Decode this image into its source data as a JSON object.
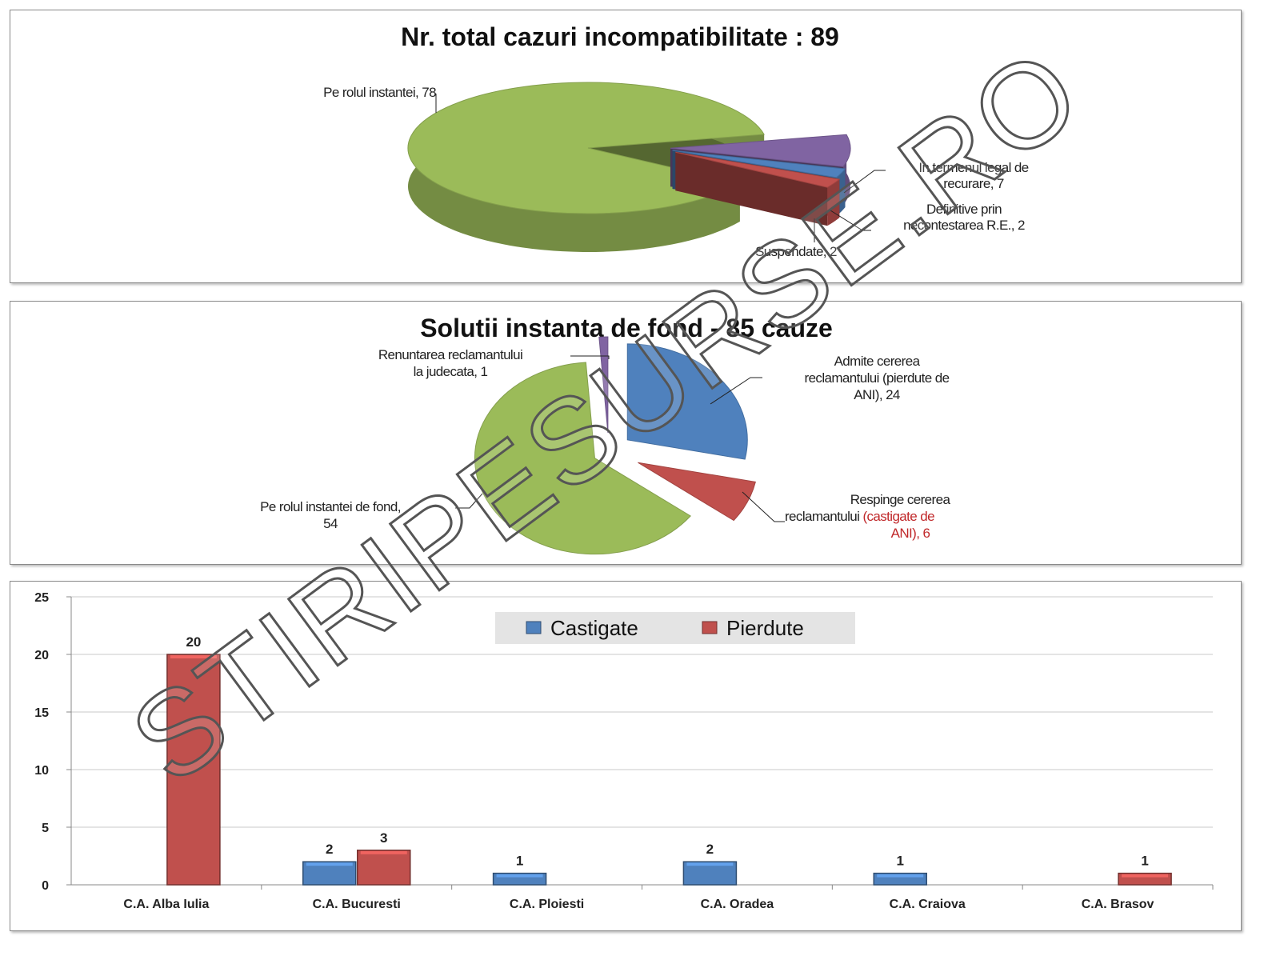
{
  "chart_data": [
    {
      "type": "pie",
      "title": "Nr. total cazuri incompatibilitate : 89",
      "slices": [
        {
          "label": "Pe rolul instantei",
          "value": 78,
          "color": "#9bbb59",
          "label_text": "Pe rolul instantei, 78"
        },
        {
          "label": "In termenul legal de recurare",
          "value": 7,
          "color": "#8064a2",
          "label_text": [
            "In termenul legal de",
            "recurare, 7"
          ]
        },
        {
          "label": "Definitive prin necontestarea R.E.",
          "value": 2,
          "color": "#4f81bd",
          "label_text": [
            "Definitive prin",
            "necontestarea R.E., 2"
          ]
        },
        {
          "label": "Suspendate",
          "value": 2,
          "color": "#c0504d",
          "label_text": "Suspendate, 2"
        }
      ]
    },
    {
      "type": "pie",
      "title": "Solutii instanta de fond - 85 cauze",
      "slices": [
        {
          "label": "Admite cererea reclamantului (pierdute de ANI)",
          "value": 24,
          "color": "#4f81bd",
          "label_text": [
            "Admite cererea",
            "reclamantului (pierdute de",
            "ANI), 24"
          ]
        },
        {
          "label": "Respinge cererea reclamantului (castigate de ANI)",
          "value": 6,
          "color": "#c0504d",
          "label_text": [
            "Respinge cererea",
            "reclamantului ",
            "(castigate de",
            "ANI), 6"
          ]
        },
        {
          "label": "Pe rolul instantei de fond",
          "value": 54,
          "color": "#9bbb59",
          "label_text": [
            "Pe rolul instantei de fond,",
            "54"
          ]
        },
        {
          "label": "Renuntarea reclamantului la judecata",
          "value": 1,
          "color": "#8064a2",
          "label_text": [
            "Renuntarea reclamantului",
            "la judecata, 1"
          ]
        }
      ]
    },
    {
      "type": "bar",
      "title": "",
      "categories": [
        "C.A. Alba Iulia",
        "C.A. Bucuresti",
        "C.A. Ploiesti",
        "C.A. Oradea",
        "C.A. Craiova",
        "C.A. Brasov"
      ],
      "series": [
        {
          "name": "Castigate",
          "color": "#4f81bd",
          "values": [
            null,
            2,
            1,
            2,
            1,
            null
          ]
        },
        {
          "name": "Pierdute",
          "color": "#c0504d",
          "values": [
            20,
            3,
            null,
            null,
            null,
            1
          ]
        }
      ],
      "ylim": [
        0,
        25
      ],
      "yticks": [
        0,
        5,
        10,
        15,
        20,
        25
      ],
      "grid": true,
      "legend": "top-center"
    }
  ],
  "watermark": "STIRIPESURSE.RO"
}
